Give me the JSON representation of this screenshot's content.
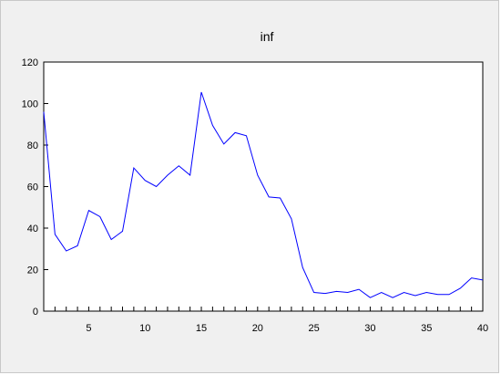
{
  "chart_data": {
    "type": "line",
    "title": "inf",
    "xlabel": "",
    "ylabel": "",
    "xlim": [
      1,
      40
    ],
    "ylim": [
      0,
      120
    ],
    "xticks": [
      5,
      10,
      15,
      20,
      25,
      30,
      35,
      40
    ],
    "yticks": [
      0,
      20,
      40,
      60,
      80,
      100,
      120
    ],
    "grid": false,
    "legend": "none",
    "series": [
      {
        "color": "#0000ff",
        "x": [
          1,
          2,
          3,
          4,
          5,
          6,
          7,
          8,
          9,
          10,
          11,
          12,
          13,
          14,
          15,
          16,
          17,
          18,
          19,
          20,
          21,
          22,
          23,
          24,
          25,
          26,
          27,
          28,
          29,
          30,
          31,
          32,
          33,
          34,
          35,
          36,
          37,
          38,
          39,
          40
        ],
        "values": [
          96,
          37,
          29,
          31.5,
          48.5,
          45.5,
          34.5,
          38.5,
          69,
          63,
          60,
          65.5,
          70,
          65.5,
          105.5,
          89.5,
          80.5,
          86,
          84.5,
          65.5,
          55,
          54.5,
          44.5,
          21,
          9,
          8.5,
          9.5,
          9,
          10.5,
          6.5,
          9,
          6.5,
          9,
          7.5,
          9,
          8,
          8,
          11,
          16,
          15
        ]
      }
    ],
    "colors": {
      "background": "#f0f0f0",
      "plot_area": "#ffffff",
      "axis": "#000000",
      "line": "#0000ff"
    }
  }
}
